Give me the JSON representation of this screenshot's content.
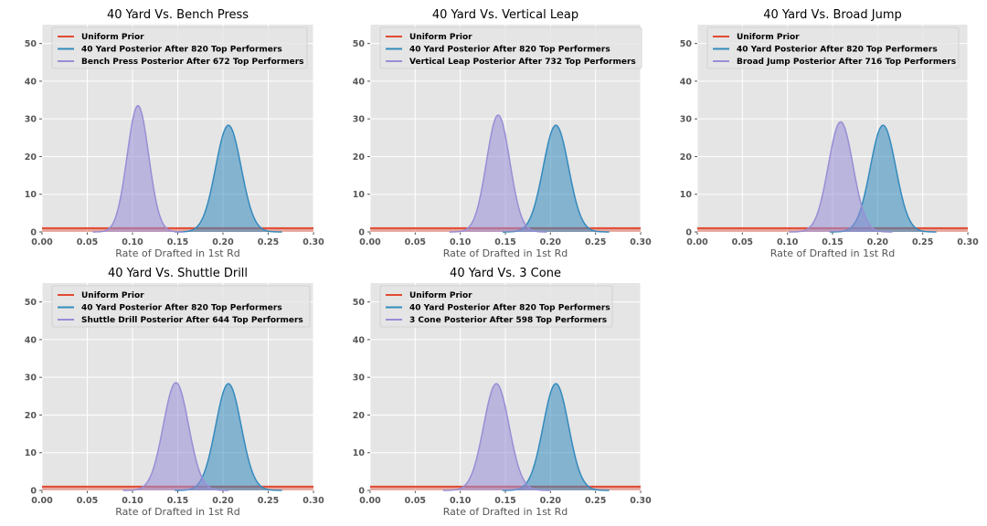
{
  "figure": {
    "colors": {
      "axes_bg": "#e5e5e5",
      "grid": "#ffffff",
      "prior": "#e24a33",
      "forty": "#348abd",
      "other": "#988ed5"
    }
  },
  "chart_data": [
    {
      "type": "area",
      "title": "40 Yard Vs. Bench Press",
      "xlabel": "Rate of Drafted in 1st Rd",
      "ylabel": "",
      "xlim": [
        0,
        0.3
      ],
      "ylim": [
        0,
        55
      ],
      "xticks": [
        "0.00",
        "0.05",
        "0.10",
        "0.15",
        "0.20",
        "0.25",
        "0.30"
      ],
      "yticks": [
        "0",
        "10",
        "20",
        "30",
        "40",
        "50"
      ],
      "grid": true,
      "legend_position": "top-left",
      "series": [
        {
          "name": "Uniform Prior",
          "kind": "line",
          "value": 1.0,
          "color": "#e24a33"
        },
        {
          "name": "40 Yard Posterior After 820 Top Performers",
          "kind": "density",
          "mean": 0.206,
          "peak": 28.3,
          "color": "#348abd"
        },
        {
          "name": "Bench Press Posterior After 672 Top Performers",
          "kind": "density",
          "mean": 0.106,
          "peak": 33.5,
          "color": "#988ed5"
        }
      ]
    },
    {
      "type": "area",
      "title": "40 Yard Vs. Vertical Leap",
      "xlabel": "Rate of Drafted in 1st Rd",
      "ylabel": "",
      "xlim": [
        0,
        0.3
      ],
      "ylim": [
        0,
        55
      ],
      "xticks": [
        "0.00",
        "0.05",
        "0.10",
        "0.15",
        "0.20",
        "0.25",
        "0.30"
      ],
      "yticks": [
        "0",
        "10",
        "20",
        "30",
        "40",
        "50"
      ],
      "grid": true,
      "legend_position": "top-left",
      "series": [
        {
          "name": "Uniform Prior",
          "kind": "line",
          "value": 1.0,
          "color": "#e24a33"
        },
        {
          "name": "40 Yard Posterior After 820 Top Performers",
          "kind": "density",
          "mean": 0.206,
          "peak": 28.3,
          "color": "#348abd"
        },
        {
          "name": "Vertical Leap Posterior After 732 Top Performers",
          "kind": "density",
          "mean": 0.142,
          "peak": 31.0,
          "color": "#988ed5"
        }
      ]
    },
    {
      "type": "area",
      "title": "40 Yard Vs. Broad Jump",
      "xlabel": "Rate of Drafted in 1st Rd",
      "ylabel": "",
      "xlim": [
        0,
        0.3
      ],
      "ylim": [
        0,
        55
      ],
      "xticks": [
        "0.00",
        "0.05",
        "0.10",
        "0.15",
        "0.20",
        "0.25",
        "0.30"
      ],
      "yticks": [
        "0",
        "10",
        "20",
        "30",
        "40",
        "50"
      ],
      "grid": true,
      "legend_position": "top-left",
      "series": [
        {
          "name": "Uniform Prior",
          "kind": "line",
          "value": 1.0,
          "color": "#e24a33"
        },
        {
          "name": "40 Yard Posterior After 820 Top Performers",
          "kind": "density",
          "mean": 0.206,
          "peak": 28.3,
          "color": "#348abd"
        },
        {
          "name": "Broad Jump Posterior After 716 Top Performers",
          "kind": "density",
          "mean": 0.159,
          "peak": 29.2,
          "color": "#988ed5"
        }
      ]
    },
    {
      "type": "area",
      "title": "40 Yard Vs. Shuttle Drill",
      "xlabel": "Rate of Drafted in 1st Rd",
      "ylabel": "",
      "xlim": [
        0,
        0.3
      ],
      "ylim": [
        0,
        55
      ],
      "xticks": [
        "0.00",
        "0.05",
        "0.10",
        "0.15",
        "0.20",
        "0.25",
        "0.30"
      ],
      "yticks": [
        "0",
        "10",
        "20",
        "30",
        "40",
        "50"
      ],
      "grid": true,
      "legend_position": "top-left",
      "series": [
        {
          "name": "Uniform Prior",
          "kind": "line",
          "value": 1.0,
          "color": "#e24a33"
        },
        {
          "name": "40 Yard Posterior After 820 Top Performers",
          "kind": "density",
          "mean": 0.206,
          "peak": 28.3,
          "color": "#348abd"
        },
        {
          "name": "Shuttle Drill Posterior After 644 Top Performers",
          "kind": "density",
          "mean": 0.148,
          "peak": 28.6,
          "color": "#988ed5"
        }
      ]
    },
    {
      "type": "area",
      "title": "40 Yard Vs. 3 Cone",
      "xlabel": "Rate of Drafted in 1st Rd",
      "ylabel": "",
      "xlim": [
        0,
        0.3
      ],
      "ylim": [
        0,
        55
      ],
      "xticks": [
        "0.00",
        "0.05",
        "0.10",
        "0.15",
        "0.20",
        "0.25",
        "0.30"
      ],
      "yticks": [
        "0",
        "10",
        "20",
        "30",
        "40",
        "50"
      ],
      "grid": true,
      "legend_position": "top-left",
      "series": [
        {
          "name": "Uniform Prior",
          "kind": "line",
          "value": 1.0,
          "color": "#e24a33"
        },
        {
          "name": "40 Yard Posterior After 820 Top Performers",
          "kind": "density",
          "mean": 0.206,
          "peak": 28.3,
          "color": "#348abd"
        },
        {
          "name": "3 Cone Posterior After 598 Top Performers",
          "kind": "density",
          "mean": 0.14,
          "peak": 28.3,
          "color": "#988ed5"
        }
      ]
    }
  ]
}
